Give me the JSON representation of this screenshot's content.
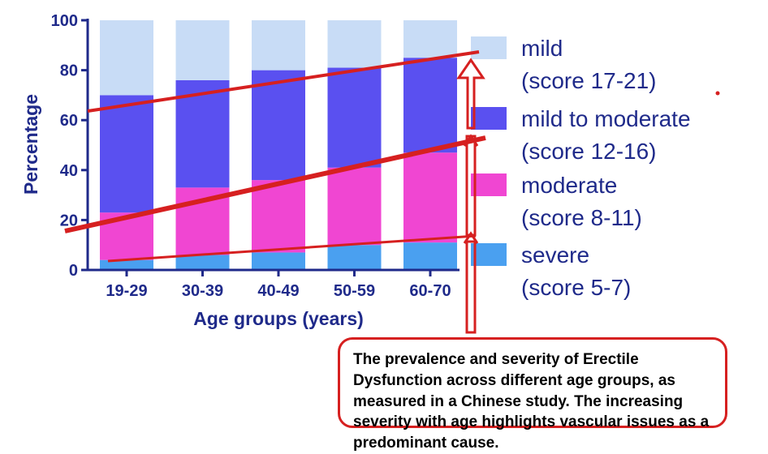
{
  "chart_data": {
    "type": "bar",
    "stacked": true,
    "categories": [
      "19-29",
      "30-39",
      "40-49",
      "50-59",
      "60-70"
    ],
    "series": [
      {
        "name": "severe",
        "name_line2": "(score 5-7)",
        "values": [
          4,
          6,
          7,
          10,
          11
        ],
        "color": "#4aa0f0"
      },
      {
        "name": "moderate",
        "name_line2": "(score 8-11)",
        "values": [
          19,
          27,
          29,
          31,
          36
        ],
        "color": "#f046d2"
      },
      {
        "name": "mild to moderate",
        "name_line2": "(score 12-16)",
        "values": [
          47,
          43,
          44,
          40,
          38
        ],
        "color": "#5a50f0"
      },
      {
        "name": "mild",
        "name_line2": "(score 17-21)",
        "values": [
          30,
          24,
          20,
          19,
          15
        ],
        "color": "#c8dcf6"
      }
    ],
    "xlabel": "Age groups (years)",
    "ylabel": "Percentage",
    "ylim": [
      0,
      100
    ],
    "yticks": [
      0,
      20,
      40,
      60,
      80,
      100
    ],
    "legend_position": "right",
    "grid": false
  },
  "annotation_color": "#d62020",
  "caption": "The prevalence and severity of Erectile Dysfunction across different age groups, as measured in a Chinese study. The increasing severity with age highlights vascular issues as a predominant cause."
}
